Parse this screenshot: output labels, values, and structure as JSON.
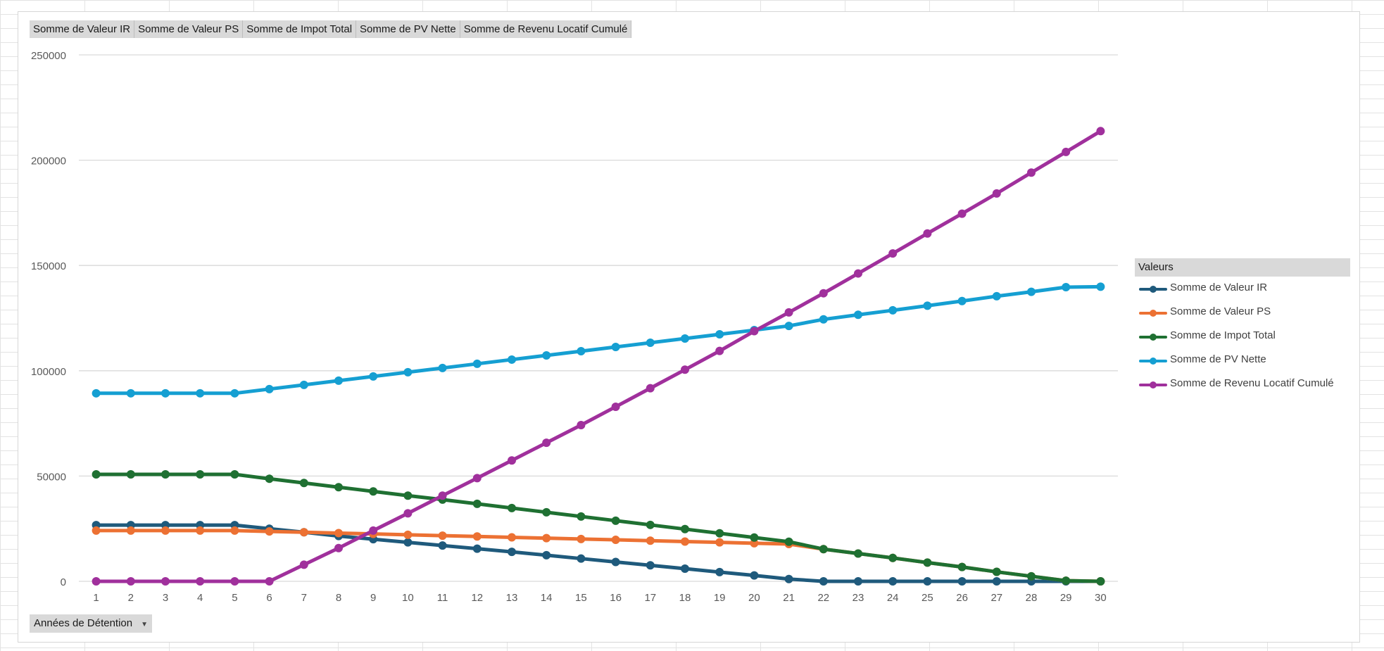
{
  "field_buttons": [
    "Somme de Valeur IR",
    "Somme de Valeur PS",
    "Somme de Impot Total",
    "Somme de PV Nette",
    "Somme de Revenu Locatif Cumulé"
  ],
  "axis_field": {
    "label": "Années de Détention",
    "icon": "dropdown-arrow-icon"
  },
  "legend": {
    "title": "Valeurs",
    "items": [
      {
        "label": "Somme de Valeur IR",
        "color": "#1f5a7c"
      },
      {
        "label": "Somme de Valeur PS",
        "color": "#ec7133"
      },
      {
        "label": "Somme de Impot Total",
        "color": "#1f7032"
      },
      {
        "label": "Somme de PV Nette",
        "color": "#159fd2"
      },
      {
        "label": "Somme de Revenu Locatif Cumulé",
        "color": "#a0309c"
      }
    ]
  },
  "chart_data": {
    "type": "line",
    "categories": [
      "1",
      "2",
      "3",
      "4",
      "5",
      "6",
      "7",
      "8",
      "9",
      "10",
      "11",
      "12",
      "13",
      "14",
      "15",
      "16",
      "17",
      "18",
      "19",
      "20",
      "21",
      "22",
      "23",
      "24",
      "25",
      "26",
      "27",
      "28",
      "29",
      "30"
    ],
    "ylim": [
      0,
      250000
    ],
    "yticks": [
      0,
      50000,
      100000,
      150000,
      200000,
      250000
    ],
    "grid": true,
    "legend_position": "right",
    "series": [
      {
        "name": "Somme de Valeur IR",
        "color": "#1f5a7c",
        "values": [
          26700,
          26700,
          26700,
          26700,
          26700,
          25000,
          23300,
          21500,
          20000,
          18500,
          17000,
          15500,
          14000,
          12400,
          10800,
          9200,
          7600,
          6000,
          4400,
          2800,
          1100,
          0,
          0,
          0,
          0,
          0,
          0,
          0,
          0,
          0
        ]
      },
      {
        "name": "Somme de Valeur PS",
        "color": "#ec7133",
        "values": [
          24100,
          24100,
          24100,
          24100,
          24100,
          23700,
          23300,
          22900,
          22500,
          22100,
          21700,
          21300,
          20900,
          20500,
          20100,
          19700,
          19300,
          18900,
          18500,
          18100,
          17700,
          15300,
          13200,
          11100,
          8900,
          6800,
          4500,
          2400,
          300,
          0
        ]
      },
      {
        "name": "Somme de Impot Total",
        "color": "#1f7032",
        "values": [
          50800,
          50800,
          50800,
          50800,
          50800,
          48700,
          46700,
          44700,
          42700,
          40700,
          38800,
          36800,
          34800,
          32800,
          30800,
          28800,
          26800,
          24800,
          22800,
          20800,
          18800,
          15300,
          13200,
          11100,
          8900,
          6800,
          4500,
          2400,
          300,
          0
        ]
      },
      {
        "name": "Somme de PV Nette",
        "color": "#159fd2",
        "values": [
          89300,
          89300,
          89300,
          89300,
          89300,
          91300,
          93300,
          95300,
          97300,
          99300,
          101300,
          103300,
          105300,
          107300,
          109300,
          111300,
          113300,
          115300,
          117300,
          119300,
          121300,
          124400,
          126600,
          128700,
          130900,
          133100,
          135400,
          137500,
          139700,
          139900
        ]
      },
      {
        "name": "Somme de Revenu Locatif Cumulé",
        "color": "#a0309c",
        "values": [
          0,
          0,
          0,
          0,
          0,
          0,
          7900,
          15800,
          24100,
          32300,
          40700,
          49000,
          57400,
          65800,
          74200,
          82900,
          91700,
          100500,
          109400,
          118800,
          127700,
          136800,
          146200,
          155700,
          165200,
          174600,
          184200,
          194100,
          203900,
          213800
        ]
      }
    ]
  }
}
